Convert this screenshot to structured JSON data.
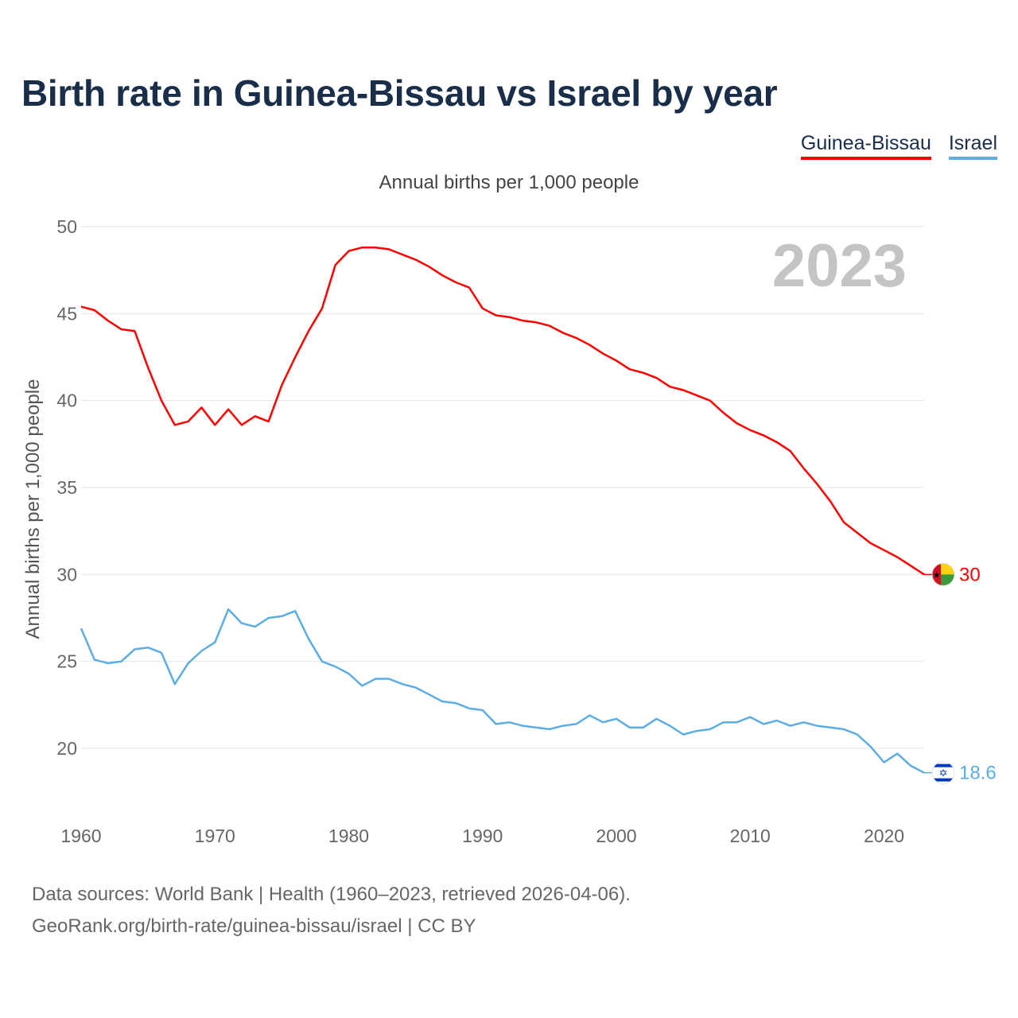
{
  "chart_data": {
    "type": "line",
    "title": "Birth rate in Guinea-Bissau vs Israel by year",
    "subtitle": "Annual births per 1,000 people",
    "ylabel": "Annual births per 1,000 people",
    "xlabel": "",
    "year_label": "2023",
    "xlim": [
      1960,
      2023
    ],
    "ylim": [
      16,
      50
    ],
    "x_ticks": [
      1960,
      1970,
      1980,
      1990,
      2000,
      2010,
      2020
    ],
    "y_ticks": [
      20,
      25,
      30,
      35,
      40,
      45,
      50
    ],
    "grid": true,
    "x": [
      1960,
      1961,
      1962,
      1963,
      1964,
      1965,
      1966,
      1967,
      1968,
      1969,
      1970,
      1971,
      1972,
      1973,
      1974,
      1975,
      1976,
      1977,
      1978,
      1979,
      1980,
      1981,
      1982,
      1983,
      1984,
      1985,
      1986,
      1987,
      1988,
      1989,
      1990,
      1991,
      1992,
      1993,
      1994,
      1995,
      1996,
      1997,
      1998,
      1999,
      2000,
      2001,
      2002,
      2003,
      2004,
      2005,
      2006,
      2007,
      2008,
      2009,
      2010,
      2011,
      2012,
      2013,
      2014,
      2015,
      2016,
      2017,
      2018,
      2019,
      2020,
      2021,
      2022,
      2023
    ],
    "series": [
      {
        "name": "Guinea-Bissau",
        "color": "#ff0000",
        "end_label": "30",
        "flag": "guinea-bissau-flag",
        "values": [
          45.4,
          45.2,
          44.6,
          44.1,
          44.0,
          41.9,
          40.0,
          38.6,
          38.8,
          39.6,
          38.6,
          39.5,
          38.6,
          39.1,
          38.8,
          40.9,
          42.5,
          44.0,
          45.3,
          47.8,
          48.6,
          48.8,
          48.8,
          48.7,
          48.4,
          48.1,
          47.7,
          47.2,
          46.8,
          46.5,
          45.3,
          44.9,
          44.8,
          44.6,
          44.5,
          44.3,
          43.9,
          43.6,
          43.2,
          42.7,
          42.3,
          41.8,
          41.6,
          41.3,
          40.8,
          40.6,
          40.3,
          40.0,
          39.3,
          38.7,
          38.3,
          38.0,
          37.6,
          37.1,
          36.1,
          35.2,
          34.2,
          33.0,
          32.4,
          31.8,
          31.4,
          31.0,
          30.5,
          30.0
        ]
      },
      {
        "name": "Israel",
        "color": "#5dade2",
        "end_label": "18.6",
        "flag": "israel-flag",
        "values": [
          26.9,
          25.1,
          24.9,
          25.0,
          25.7,
          25.8,
          25.5,
          23.7,
          24.9,
          25.6,
          26.1,
          28.0,
          27.2,
          27.0,
          27.5,
          27.6,
          27.9,
          26.3,
          25.0,
          24.7,
          24.3,
          23.6,
          24.0,
          24.0,
          23.7,
          23.5,
          23.1,
          22.7,
          22.6,
          22.3,
          22.2,
          21.4,
          21.5,
          21.3,
          21.2,
          21.1,
          21.3,
          21.4,
          21.9,
          21.5,
          21.7,
          21.2,
          21.2,
          21.7,
          21.3,
          20.8,
          21.0,
          21.1,
          21.5,
          21.5,
          21.8,
          21.4,
          21.6,
          21.3,
          21.5,
          21.3,
          21.2,
          21.1,
          20.8,
          20.1,
          19.2,
          19.7,
          19.0,
          18.6
        ]
      }
    ]
  },
  "legend": {
    "items": [
      "Guinea-Bissau",
      "Israel"
    ]
  },
  "source": {
    "line1": "Data sources: World Bank | Health (1960–2023, retrieved 2026-04-06).",
    "line2": "GeoRank.org/birth-rate/guinea-bissau/israel | CC BY"
  }
}
